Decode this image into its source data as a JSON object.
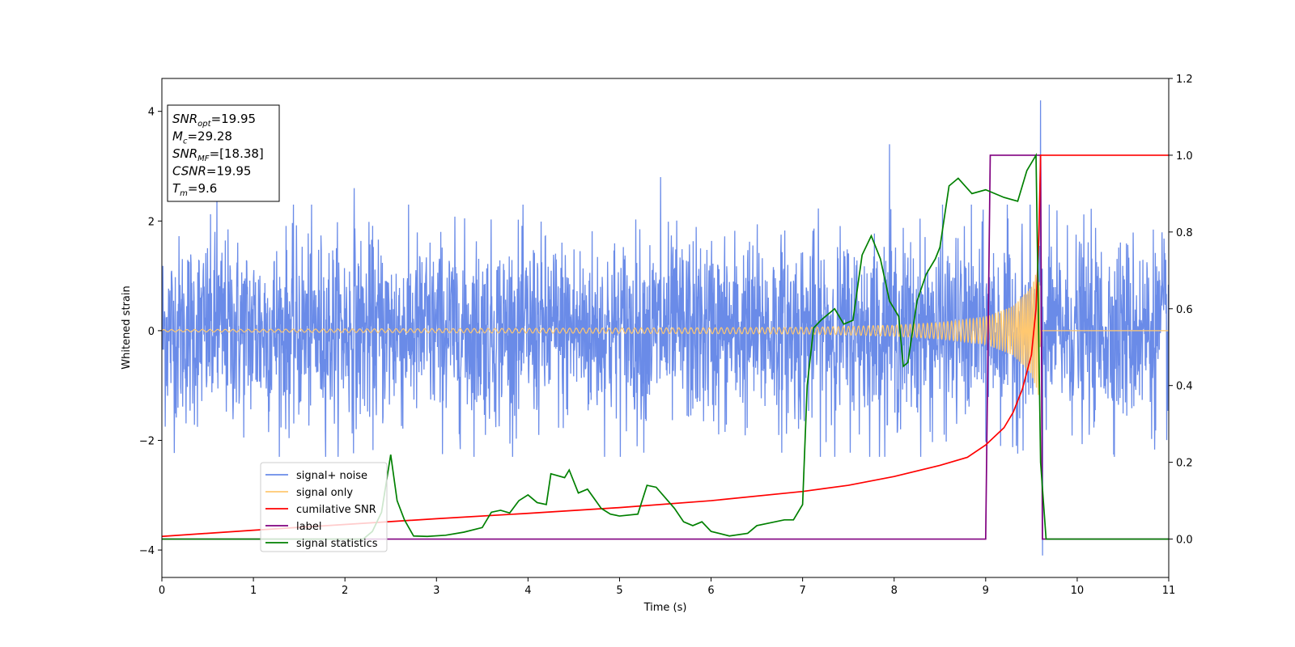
{
  "chart_data": {
    "type": "line",
    "title": "",
    "xlabel": "Time (s)",
    "ylabel": "Whitened strain",
    "ylabel_right": "",
    "xlim": [
      0,
      11
    ],
    "ylim": [
      -4.5,
      4.6
    ],
    "ylim_right": [
      -0.1,
      1.2
    ],
    "xticks": [
      0,
      1,
      2,
      3,
      4,
      5,
      6,
      7,
      8,
      9,
      10,
      11
    ],
    "yticks": [
      -4,
      -2,
      0,
      2,
      4
    ],
    "yticks_right": [
      0.0,
      0.2,
      0.4,
      0.6,
      0.8,
      1.0,
      1.2
    ],
    "grid": false,
    "legend_position": "lower-left",
    "legend": [
      {
        "label": "signal+ noise",
        "color": "#6a8be8"
      },
      {
        "label": "signal only",
        "color": "#ffc870"
      },
      {
        "label": "cumilative SNR",
        "color": "#ff0000"
      },
      {
        "label": "label",
        "color": "#800080"
      },
      {
        "label": "signal statistics",
        "color": "#008000"
      }
    ],
    "info_box": {
      "lines": [
        {
          "base": "SNR",
          "sub": "opt",
          "value": "=19.95"
        },
        {
          "base": "M",
          "sub": "c",
          "value": "=29.28"
        },
        {
          "base": "SNR",
          "sub": "MF",
          "value": "=[18.38]"
        },
        {
          "base": "CSNR",
          "sub": "",
          "value": "=19.95"
        },
        {
          "base": "T",
          "sub": "m",
          "value": "=9.6"
        }
      ]
    },
    "series": [
      {
        "name": "signal+ noise",
        "axis": "left",
        "color": "#6a8be8",
        "noise_sigma": 1.0,
        "noise_peak": [
          [
            0.6,
            2.4
          ],
          [
            2.1,
            2.6
          ],
          [
            5.45,
            2.8
          ],
          [
            7.95,
            3.4
          ],
          [
            9.6,
            4.2
          ],
          [
            9.62,
            -4.1
          ]
        ]
      },
      {
        "name": "signal only",
        "axis": "left",
        "color": "#ffc870",
        "envelope": [
          [
            0,
            0.02
          ],
          [
            7,
            0.06
          ],
          [
            8,
            0.1
          ],
          [
            8.5,
            0.15
          ],
          [
            9.0,
            0.25
          ],
          [
            9.3,
            0.45
          ],
          [
            9.5,
            0.8
          ],
          [
            9.58,
            1.2
          ],
          [
            9.6,
            0.0
          ],
          [
            11,
            0.0
          ]
        ]
      },
      {
        "name": "cumilative SNR",
        "axis": "right",
        "color": "#ff0000",
        "points": [
          [
            0,
            0.007
          ],
          [
            1,
            0.023
          ],
          [
            2,
            0.038
          ],
          [
            3,
            0.053
          ],
          [
            4,
            0.067
          ],
          [
            5,
            0.082
          ],
          [
            6,
            0.1
          ],
          [
            7,
            0.124
          ],
          [
            7.5,
            0.14
          ],
          [
            8,
            0.163
          ],
          [
            8.5,
            0.192
          ],
          [
            8.8,
            0.213
          ],
          [
            9.0,
            0.245
          ],
          [
            9.2,
            0.29
          ],
          [
            9.3,
            0.33
          ],
          [
            9.4,
            0.39
          ],
          [
            9.5,
            0.48
          ],
          [
            9.55,
            0.6
          ],
          [
            9.58,
            0.78
          ],
          [
            9.6,
            1.0
          ],
          [
            11,
            1.0
          ]
        ]
      },
      {
        "name": "label",
        "axis": "right",
        "color": "#800080",
        "points": [
          [
            0,
            0
          ],
          [
            9.0,
            0
          ],
          [
            9.05,
            1.0
          ],
          [
            9.6,
            1.0
          ],
          [
            9.62,
            0
          ],
          [
            11,
            0
          ]
        ]
      },
      {
        "name": "signal statistics",
        "axis": "right",
        "color": "#008000",
        "points": [
          [
            0,
            0
          ],
          [
            2.2,
            0
          ],
          [
            2.3,
            0.02
          ],
          [
            2.4,
            0.07
          ],
          [
            2.5,
            0.22
          ],
          [
            2.57,
            0.1
          ],
          [
            2.65,
            0.05
          ],
          [
            2.75,
            0.008
          ],
          [
            2.9,
            0.007
          ],
          [
            3.1,
            0.01
          ],
          [
            3.3,
            0.018
          ],
          [
            3.5,
            0.03
          ],
          [
            3.6,
            0.07
          ],
          [
            3.7,
            0.075
          ],
          [
            3.8,
            0.068
          ],
          [
            3.9,
            0.1
          ],
          [
            4.0,
            0.115
          ],
          [
            4.1,
            0.095
          ],
          [
            4.2,
            0.09
          ],
          [
            4.25,
            0.17
          ],
          [
            4.4,
            0.16
          ],
          [
            4.45,
            0.18
          ],
          [
            4.55,
            0.12
          ],
          [
            4.65,
            0.13
          ],
          [
            4.8,
            0.08
          ],
          [
            4.9,
            0.065
          ],
          [
            5.0,
            0.06
          ],
          [
            5.2,
            0.065
          ],
          [
            5.3,
            0.14
          ],
          [
            5.4,
            0.135
          ],
          [
            5.6,
            0.08
          ],
          [
            5.7,
            0.045
          ],
          [
            5.8,
            0.035
          ],
          [
            5.9,
            0.045
          ],
          [
            6.0,
            0.02
          ],
          [
            6.2,
            0.008
          ],
          [
            6.4,
            0.015
          ],
          [
            6.5,
            0.035
          ],
          [
            6.7,
            0.045
          ],
          [
            6.8,
            0.05
          ],
          [
            6.9,
            0.05
          ],
          [
            7.0,
            0.09
          ],
          [
            7.05,
            0.4
          ],
          [
            7.12,
            0.55
          ],
          [
            7.2,
            0.57
          ],
          [
            7.35,
            0.6
          ],
          [
            7.45,
            0.56
          ],
          [
            7.55,
            0.57
          ],
          [
            7.65,
            0.74
          ],
          [
            7.75,
            0.79
          ],
          [
            7.85,
            0.73
          ],
          [
            7.95,
            0.62
          ],
          [
            8.05,
            0.58
          ],
          [
            8.1,
            0.45
          ],
          [
            8.15,
            0.46
          ],
          [
            8.25,
            0.62
          ],
          [
            8.35,
            0.69
          ],
          [
            8.45,
            0.73
          ],
          [
            8.5,
            0.76
          ],
          [
            8.6,
            0.92
          ],
          [
            8.7,
            0.94
          ],
          [
            8.85,
            0.9
          ],
          [
            9.0,
            0.91
          ],
          [
            9.2,
            0.89
          ],
          [
            9.35,
            0.88
          ],
          [
            9.45,
            0.96
          ],
          [
            9.55,
            1.0
          ],
          [
            9.6,
            0.2
          ],
          [
            9.66,
            0.0
          ],
          [
            11,
            0.0
          ]
        ]
      }
    ]
  }
}
